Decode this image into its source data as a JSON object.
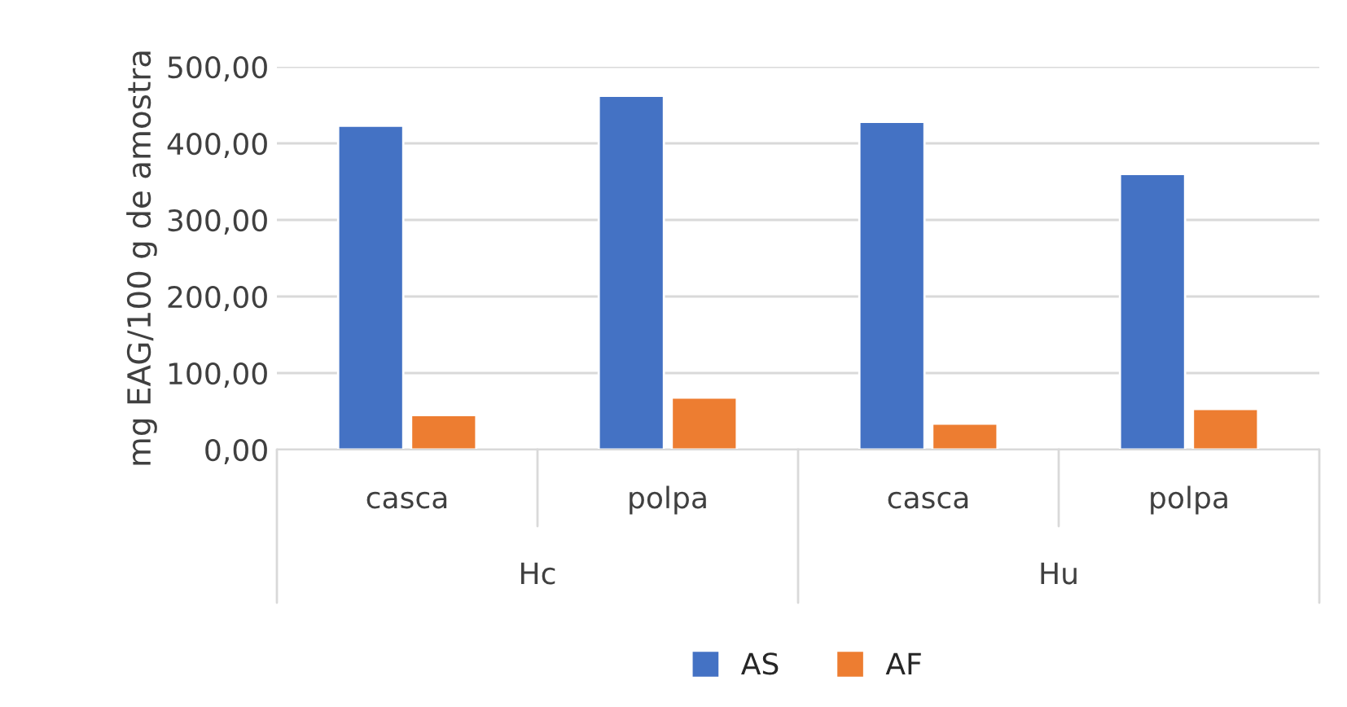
{
  "chart_data": {
    "type": "bar",
    "ylabel": "mg EAG/100 g de amostra",
    "categories": [
      "casca",
      "polpa",
      "casca",
      "polpa"
    ],
    "series": [
      {
        "name": "AS",
        "color": "#4472c4",
        "values": [
          423,
          462,
          428,
          360
        ]
      },
      {
        "name": "AF",
        "color": "#ed7d31",
        "values": [
          45,
          68,
          34,
          53
        ]
      }
    ],
    "ylim": [
      0,
      500
    ],
    "yticks": [
      {
        "value": 0,
        "label": "0,00"
      },
      {
        "value": 100,
        "label": "100,00"
      },
      {
        "value": 200,
        "label": "200,00"
      },
      {
        "value": 300,
        "label": "300,00"
      },
      {
        "value": 400,
        "label": "400,00"
      },
      {
        "value": 500,
        "label": "500,00"
      }
    ],
    "grid": "y",
    "legend": "bottom",
    "annotations": [
      "Hc",
      "Hu"
    ]
  }
}
